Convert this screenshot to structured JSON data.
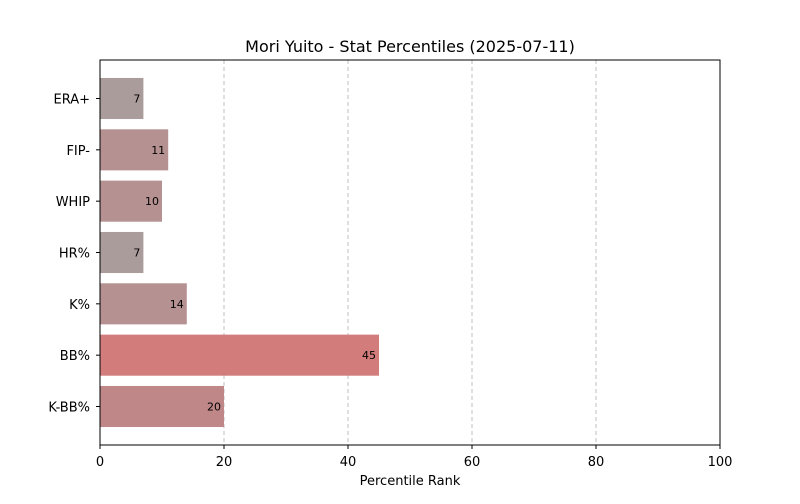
{
  "chart_data": {
    "type": "bar",
    "orientation": "horizontal",
    "title": "Mori Yuito - Stat Percentiles (2025-07-11)",
    "xlabel": "Percentile Rank",
    "ylabel": "",
    "xlim": [
      0,
      100
    ],
    "xticks": [
      0,
      20,
      40,
      60,
      80,
      100
    ],
    "grid": "x-axis dashed",
    "categories": [
      "ERA+",
      "FIP-",
      "WHIP",
      "HR%",
      "K%",
      "BB%",
      "K-BB%"
    ],
    "values": [
      7,
      11,
      10,
      7,
      14,
      45,
      20
    ],
    "bar_colors": [
      "#ab9c9c",
      "#b59191",
      "#b59191",
      "#ab9c9c",
      "#b59191",
      "#d27c7c",
      "#bf8787"
    ]
  }
}
